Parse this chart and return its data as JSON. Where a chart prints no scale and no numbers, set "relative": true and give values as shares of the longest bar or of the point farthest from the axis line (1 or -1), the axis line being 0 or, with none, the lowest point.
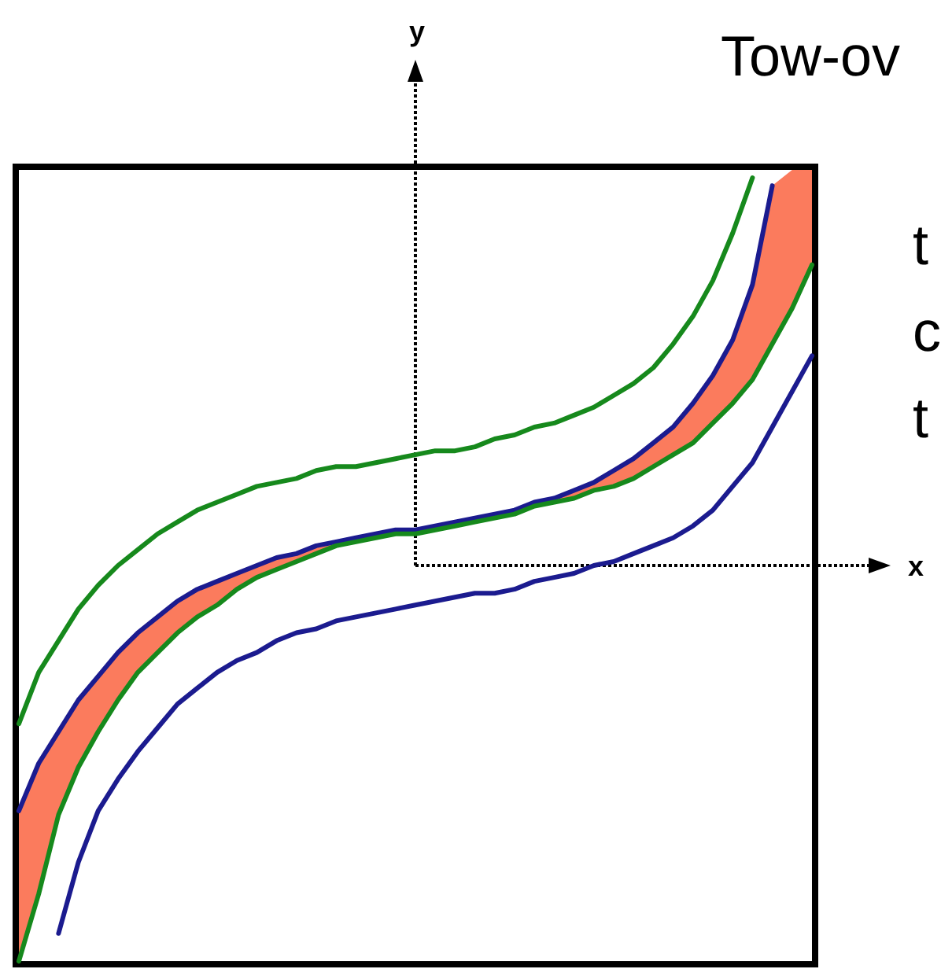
{
  "chart_data": {
    "type": "line",
    "title": "Tow-ov",
    "xlabel": "x",
    "ylabel": "y",
    "annotations": [
      "t",
      "c",
      "t"
    ],
    "relative": true,
    "categories": [
      null,
      null,
      null,
      null,
      null,
      null,
      null,
      null,
      null,
      null,
      null,
      null,
      null,
      null,
      null,
      null,
      null,
      null,
      null,
      null,
      null,
      null,
      null,
      null,
      null,
      null,
      null,
      null,
      null,
      null,
      null,
      null,
      null,
      null,
      null,
      null,
      null,
      null,
      null,
      null,
      null
    ],
    "series": [
      {
        "color": "#fb7b5d",
        "values": [
          null,
          null,
          null,
          null,
          null,
          null,
          null,
          null,
          null,
          null,
          null,
          null,
          null,
          null,
          null,
          null,
          null,
          null,
          null,
          null,
          null,
          null,
          null,
          null,
          null,
          null,
          null,
          null,
          null,
          null,
          null,
          null,
          null,
          null,
          null,
          null,
          null,
          null,
          null,
          null,
          null
        ],
        "upper": [
          -0.62,
          -0.5,
          -0.42,
          -0.34,
          -0.28,
          -0.22,
          -0.17,
          -0.13,
          -0.09,
          -0.06,
          -0.04,
          -0.02,
          0.0,
          0.02,
          0.03,
          0.05,
          0.06,
          0.07,
          0.08,
          0.09,
          0.09,
          0.1,
          0.11,
          0.12,
          0.13,
          0.14,
          0.16,
          0.17,
          0.19,
          0.21,
          0.24,
          0.27,
          0.31,
          0.35,
          0.41,
          0.48,
          0.57,
          0.71,
          0.96,
          1,
          1
        ],
        "lower": [
          -1,
          -0.83,
          -0.63,
          -0.51,
          -0.42,
          -0.34,
          -0.27,
          -0.22,
          -0.17,
          -0.13,
          -0.1,
          -0.06,
          -0.03,
          -0.01,
          0.01,
          0.03,
          0.05,
          0.06,
          0.07,
          0.08,
          0.08,
          0.09,
          0.1,
          0.11,
          0.12,
          0.13,
          0.15,
          0.16,
          0.17,
          0.19,
          0.2,
          0.22,
          0.25,
          0.28,
          0.31,
          0.36,
          0.41,
          0.47,
          0.56,
          0.65,
          0.76
        ]
      },
      {
        "type": "line",
        "color": "#16891c",
        "values": [
          -0.4,
          -0.27,
          -0.19,
          -0.11,
          -0.05,
          0.0,
          0.04,
          0.08,
          0.11,
          0.14,
          0.16,
          0.18,
          0.2,
          0.21,
          0.22,
          0.24,
          0.25,
          0.25,
          0.26,
          0.27,
          0.28,
          0.29,
          0.29,
          0.3,
          0.32,
          0.33,
          0.35,
          0.36,
          0.38,
          0.4,
          0.43,
          0.46,
          0.5,
          0.56,
          0.63,
          0.72,
          0.84,
          0.98,
          null,
          null,
          null
        ]
      },
      {
        "type": "line",
        "color": "#1b1b8f",
        "values": [
          -0.62,
          -0.5,
          -0.42,
          -0.34,
          -0.28,
          -0.22,
          -0.17,
          -0.13,
          -0.09,
          -0.06,
          -0.04,
          -0.02,
          0.0,
          0.02,
          0.03,
          0.05,
          0.06,
          0.07,
          0.08,
          0.09,
          0.09,
          0.1,
          0.11,
          0.12,
          0.13,
          0.14,
          0.16,
          0.17,
          0.19,
          0.21,
          0.24,
          0.27,
          0.31,
          0.35,
          0.41,
          0.48,
          0.57,
          0.71,
          0.96,
          null,
          null
        ]
      },
      {
        "type": "line",
        "color": "#16891c",
        "values": [
          -1,
          -0.83,
          -0.63,
          -0.51,
          -0.42,
          -0.34,
          -0.27,
          -0.22,
          -0.17,
          -0.13,
          -0.1,
          -0.06,
          -0.03,
          -0.01,
          0.01,
          0.03,
          0.05,
          0.06,
          0.07,
          0.08,
          0.08,
          0.09,
          0.1,
          0.11,
          0.12,
          0.13,
          0.15,
          0.16,
          0.17,
          0.19,
          0.2,
          0.22,
          0.25,
          0.28,
          0.31,
          0.36,
          0.41,
          0.47,
          0.56,
          0.65,
          0.76
        ]
      },
      {
        "type": "line",
        "color": "#1b1b8f",
        "values": [
          null,
          null,
          -0.93,
          -0.75,
          -0.62,
          -0.54,
          -0.47,
          -0.41,
          -0.35,
          -0.31,
          -0.27,
          -0.24,
          -0.22,
          -0.19,
          -0.17,
          -0.16,
          -0.14,
          -0.13,
          -0.12,
          -0.11,
          -0.1,
          -0.09,
          -0.08,
          -0.07,
          -0.07,
          -0.06,
          -0.04,
          -0.03,
          -0.02,
          0.0,
          0.01,
          0.03,
          0.05,
          0.07,
          0.1,
          0.14,
          0.2,
          0.26,
          0.35,
          0.44,
          0.53
        ]
      }
    ]
  }
}
